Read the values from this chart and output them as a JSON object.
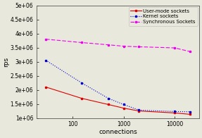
{
  "xlabel": "connections",
  "ylabel": "rps",
  "x": [
    30,
    150,
    500,
    1000,
    2000,
    10000,
    20000
  ],
  "user_mode": [
    2100000,
    1700000,
    1480000,
    1350000,
    1250000,
    1180000,
    1130000
  ],
  "kernel": [
    3050000,
    2250000,
    1700000,
    1480000,
    1280000,
    1230000,
    1220000
  ],
  "synchronous": [
    3800000,
    3680000,
    3600000,
    3550000,
    3530000,
    3490000,
    3360000
  ],
  "user_color": "#dd0000",
  "kernel_color": "#0000cc",
  "sync_color": "#ee00ee",
  "bg_color": "#e8e8dc",
  "ylim_min": 1000000,
  "ylim_max": 5000000,
  "xlim_min": 20,
  "xlim_max": 30000,
  "xticks": [
    100,
    1000,
    10000
  ],
  "yticks": [
    1000000,
    1500000,
    2000000,
    2500000,
    3000000,
    3500000,
    4000000,
    4500000,
    5000000
  ],
  "legend_labels": [
    "User-mode sockets",
    "Kernel sockets",
    "Synchronous Sockets"
  ]
}
